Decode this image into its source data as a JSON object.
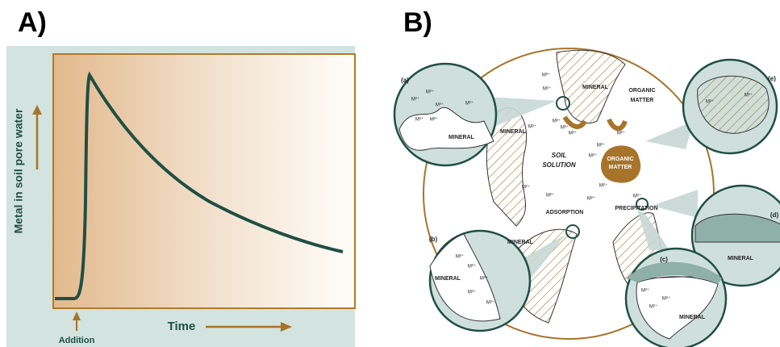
{
  "panel_a": {
    "label": "A)",
    "y_axis_label": "Metal in soil pore water",
    "x_axis_label": "Time",
    "event_label": "Addition"
  },
  "panel_b": {
    "label": "B)",
    "texts": [
      "(a)",
      "(b)",
      "(c)",
      "(d)",
      "(e)",
      "MINERAL",
      "MINERAL",
      "MINERAL",
      "MINERAL",
      "MINERAL",
      "MINERAL",
      "MINERAL",
      "ORGANIC",
      "MATTER",
      "ORGANIC",
      "MATTER",
      "SOIL",
      "SOLUTION",
      "ADSORPTION",
      "PRECIPITATION",
      "M²⁺",
      "M²⁺",
      "M²⁺",
      "M²⁺",
      "M²⁺",
      "M²⁺",
      "M²⁺",
      "M²⁺",
      "M²⁺",
      "M²⁺",
      "M²⁺",
      "M²⁺",
      "M²⁺",
      "M²⁺",
      "M²⁺",
      "M²⁺",
      "M²⁺",
      "M²⁺",
      "M²⁺",
      "M²⁺",
      "M²⁺",
      "M²⁺",
      "M²⁺",
      "M²⁺",
      "M²⁺",
      "M²⁺",
      "M²⁺",
      "M²⁺",
      "M²⁺",
      "M²⁺"
    ]
  }
}
